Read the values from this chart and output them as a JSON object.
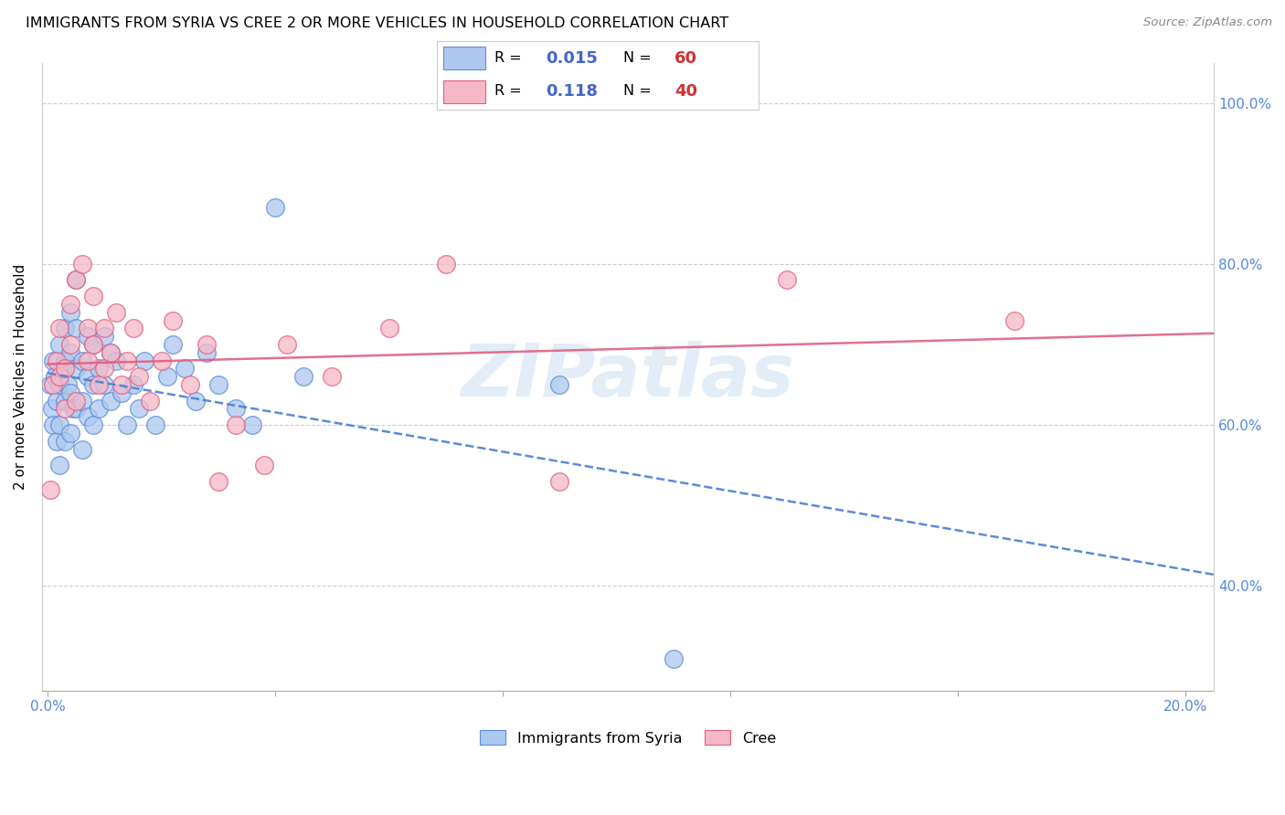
{
  "title": "IMMIGRANTS FROM SYRIA VS CREE 2 OR MORE VEHICLES IN HOUSEHOLD CORRELATION CHART",
  "source": "Source: ZipAtlas.com",
  "ylabel": "2 or more Vehicles in Household",
  "xlim": [
    -0.001,
    0.205
  ],
  "ylim": [
    0.27,
    1.05
  ],
  "xticks": [
    0.0,
    0.04,
    0.08,
    0.12,
    0.16,
    0.2
  ],
  "xtick_labels": [
    "0.0%",
    "",
    "",
    "",
    "",
    "20.0%"
  ],
  "yticks_right": [
    0.4,
    0.6,
    0.8,
    1.0
  ],
  "ytick_labels_right": [
    "40.0%",
    "60.0%",
    "80.0%",
    "100.0%"
  ],
  "R_syria": 0.015,
  "N_syria": 60,
  "R_cree": 0.118,
  "N_cree": 40,
  "syria_color": "#adc8f0",
  "cree_color": "#f5b8c8",
  "syria_edge_color": "#5b8dd9",
  "cree_edge_color": "#e06080",
  "syria_line_color": "#4a7fd4",
  "cree_line_color": "#e06080",
  "legend_label_syria": "Immigrants from Syria",
  "legend_label_cree": "Cree",
  "watermark": "ZIPatlas",
  "legend_R_color": "#4466cc",
  "legend_N_color": "#cc3333",
  "syria_x": [
    0.0005,
    0.0008,
    0.001,
    0.001,
    0.0012,
    0.0015,
    0.0015,
    0.002,
    0.002,
    0.002,
    0.002,
    0.0025,
    0.003,
    0.003,
    0.003,
    0.003,
    0.0035,
    0.004,
    0.004,
    0.004,
    0.004,
    0.0045,
    0.005,
    0.005,
    0.005,
    0.005,
    0.006,
    0.006,
    0.006,
    0.007,
    0.007,
    0.007,
    0.008,
    0.008,
    0.008,
    0.009,
    0.009,
    0.01,
    0.01,
    0.011,
    0.011,
    0.012,
    0.013,
    0.014,
    0.015,
    0.016,
    0.017,
    0.019,
    0.021,
    0.022,
    0.024,
    0.026,
    0.028,
    0.03,
    0.033,
    0.036,
    0.04,
    0.045,
    0.09,
    0.11
  ],
  "syria_y": [
    0.65,
    0.62,
    0.68,
    0.6,
    0.66,
    0.63,
    0.58,
    0.7,
    0.65,
    0.6,
    0.55,
    0.67,
    0.72,
    0.68,
    0.63,
    0.58,
    0.65,
    0.74,
    0.69,
    0.64,
    0.59,
    0.62,
    0.78,
    0.72,
    0.67,
    0.62,
    0.68,
    0.63,
    0.57,
    0.71,
    0.66,
    0.61,
    0.7,
    0.65,
    0.6,
    0.67,
    0.62,
    0.71,
    0.65,
    0.69,
    0.63,
    0.68,
    0.64,
    0.6,
    0.65,
    0.62,
    0.68,
    0.6,
    0.66,
    0.7,
    0.67,
    0.63,
    0.69,
    0.65,
    0.62,
    0.6,
    0.87,
    0.66,
    0.65,
    0.31
  ],
  "cree_x": [
    0.0005,
    0.001,
    0.0015,
    0.002,
    0.002,
    0.003,
    0.003,
    0.004,
    0.004,
    0.005,
    0.005,
    0.006,
    0.007,
    0.007,
    0.008,
    0.008,
    0.009,
    0.01,
    0.01,
    0.011,
    0.012,
    0.013,
    0.014,
    0.015,
    0.016,
    0.018,
    0.02,
    0.022,
    0.025,
    0.028,
    0.03,
    0.033,
    0.038,
    0.042,
    0.05,
    0.06,
    0.07,
    0.09,
    0.13,
    0.17
  ],
  "cree_y": [
    0.52,
    0.65,
    0.68,
    0.72,
    0.66,
    0.67,
    0.62,
    0.75,
    0.7,
    0.78,
    0.63,
    0.8,
    0.72,
    0.68,
    0.76,
    0.7,
    0.65,
    0.72,
    0.67,
    0.69,
    0.74,
    0.65,
    0.68,
    0.72,
    0.66,
    0.63,
    0.68,
    0.73,
    0.65,
    0.7,
    0.53,
    0.6,
    0.55,
    0.7,
    0.66,
    0.72,
    0.8,
    0.53,
    0.78,
    0.73
  ]
}
